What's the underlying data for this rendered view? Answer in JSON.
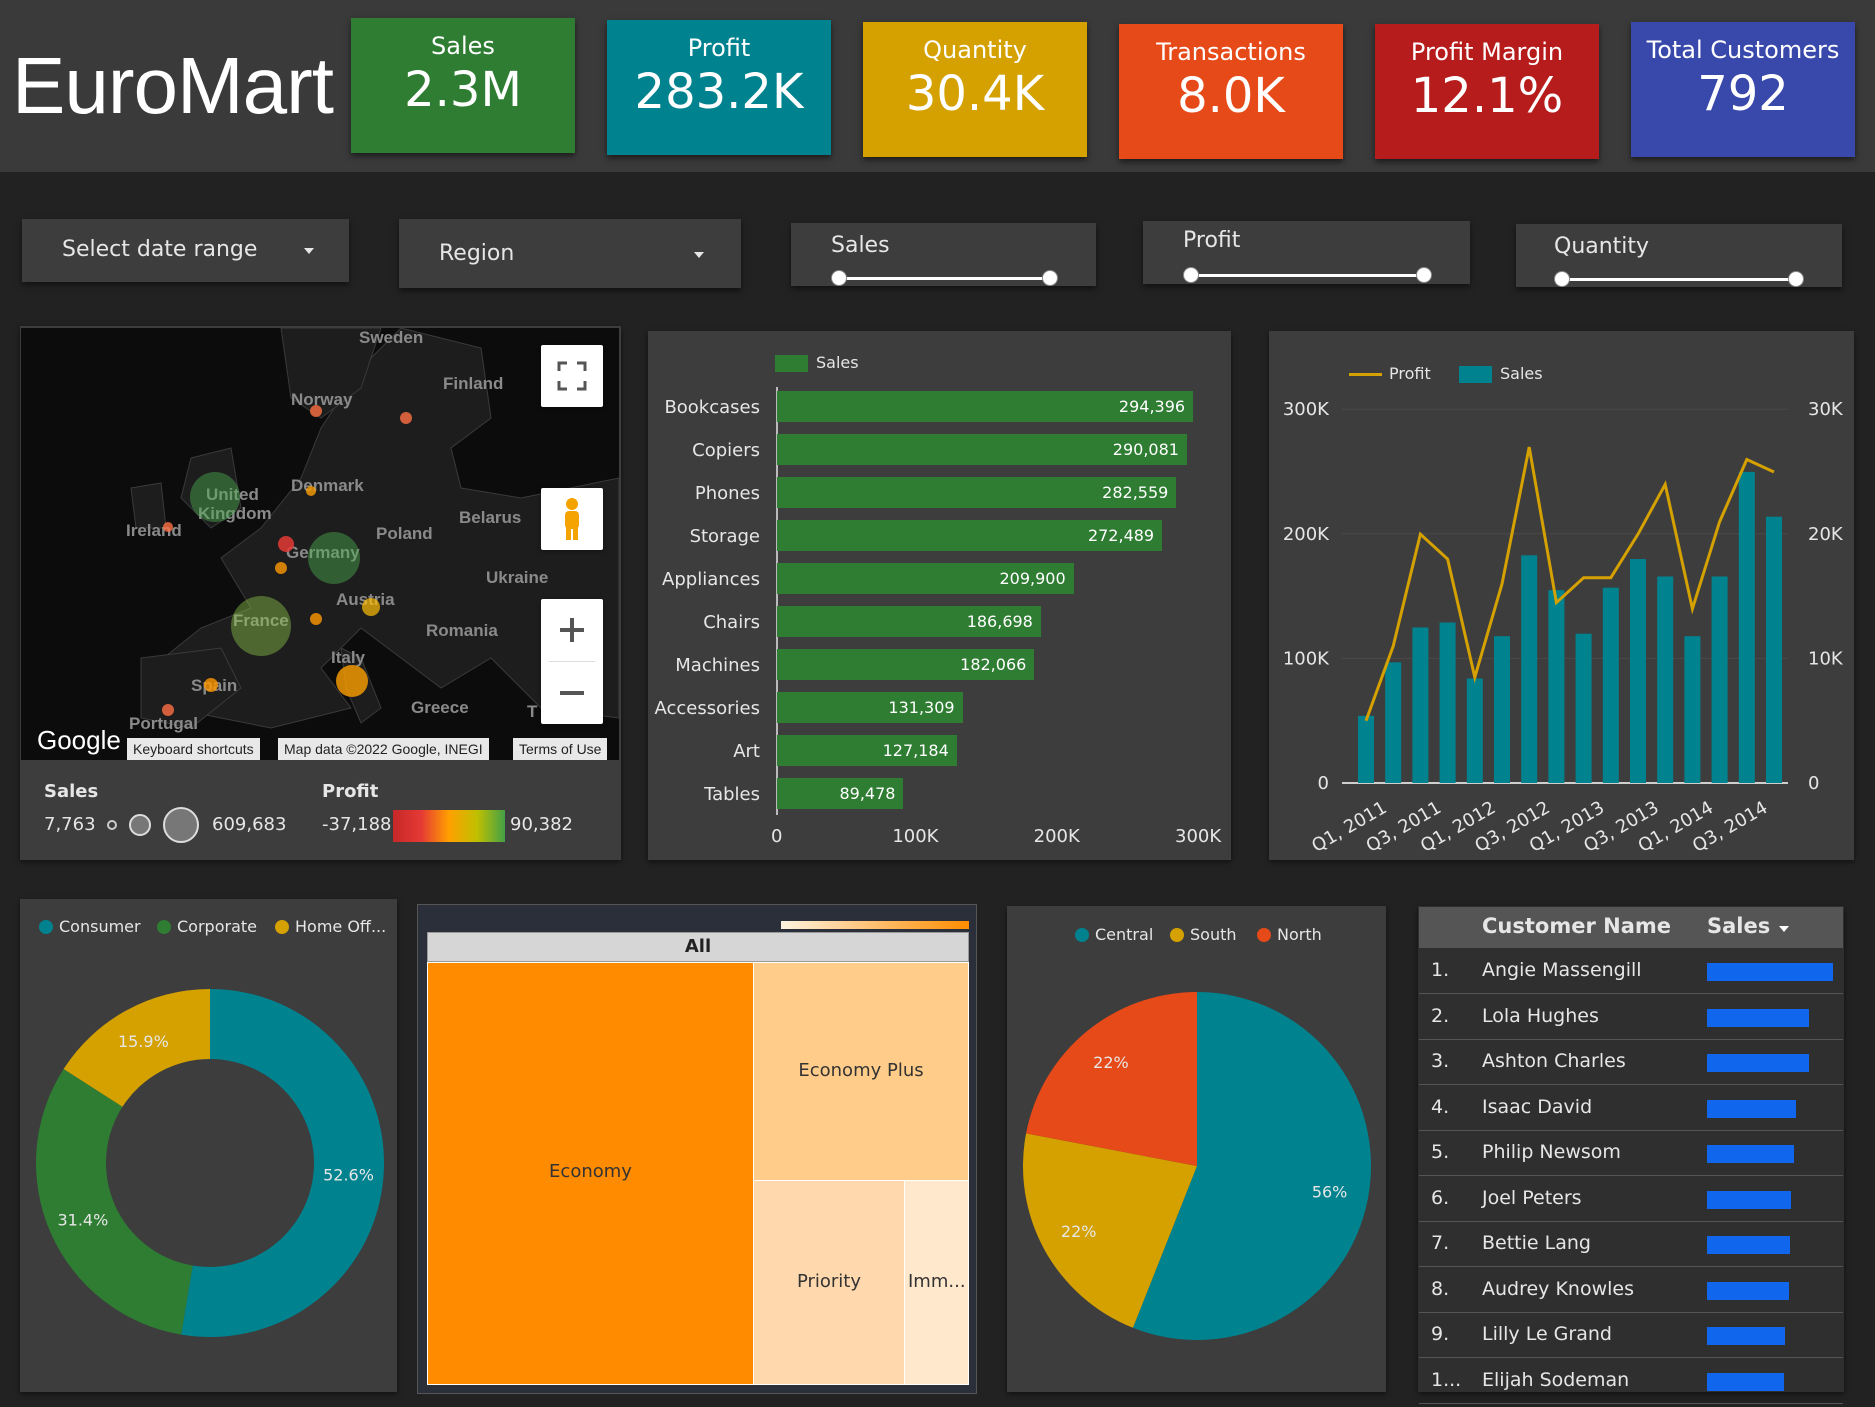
{
  "header": {
    "brand": "EuroMart",
    "kpis": [
      {
        "label": "Sales",
        "value": "2.3M",
        "color": "#2e7d32"
      },
      {
        "label": "Profit",
        "value": "283.2K",
        "color": "#00838f"
      },
      {
        "label": "Quantity",
        "value": "30.4K",
        "color": "#d4a100"
      },
      {
        "label": "Transactions",
        "value": "8.0K",
        "color": "#e64a19"
      },
      {
        "label": "Profit Margin",
        "value": "12.1%",
        "color": "#b71c1c"
      },
      {
        "label": "Total Customers",
        "value": "792",
        "color": "#3949ab"
      }
    ]
  },
  "filters": {
    "date_range": "Select date range",
    "region": "Region",
    "sliders": [
      "Sales",
      "Profit",
      "Quantity"
    ]
  },
  "map": {
    "labels": [
      "Sweden",
      "Finland",
      "Norway",
      "United",
      "Kingdom",
      "Denmark",
      "Belarus",
      "Ireland",
      "Poland",
      "Germany",
      "Ukraine",
      "Austria",
      "France",
      "Romania",
      "Italy",
      "Spain",
      "Portugal",
      "Greece",
      "T"
    ],
    "google": "Google",
    "footer": [
      "Keyboard shortcuts",
      "Map data ©2022 Google, INEGI",
      "Terms of Use"
    ],
    "legend": {
      "sales_title": "Sales",
      "sales_min": "7,763",
      "sales_max": "609,683",
      "profit_title": "Profit",
      "profit_min": "-37,188",
      "profit_max": "90,382"
    }
  },
  "chart_data": [
    {
      "type": "bar",
      "orientation": "horizontal",
      "legend": [
        "Sales"
      ],
      "categories": [
        "Bookcases",
        "Copiers",
        "Phones",
        "Storage",
        "Appliances",
        "Chairs",
        "Machines",
        "Accessories",
        "Art",
        "Tables"
      ],
      "values": [
        294396,
        290081,
        282559,
        272489,
        209900,
        186698,
        182066,
        131309,
        127184,
        89478
      ],
      "value_labels": [
        "294,396",
        "290,081",
        "282,559",
        "272,489",
        "209,900",
        "186,698",
        "182,066",
        "131,309",
        "127,184",
        "89,478"
      ],
      "xticks": [
        "0",
        "100K",
        "200K",
        "300K"
      ],
      "xlim": [
        0,
        300000
      ],
      "color": "#2e7d32"
    },
    {
      "type": "bar+line",
      "legend": [
        "Profit",
        "Sales"
      ],
      "x": [
        "Q1, 2011",
        "Q2, 2011",
        "Q3, 2011",
        "Q4, 2011",
        "Q1, 2012",
        "Q2, 2012",
        "Q3, 2012",
        "Q4, 2012",
        "Q1, 2013",
        "Q2, 2013",
        "Q3, 2013",
        "Q4, 2013",
        "Q1, 2014",
        "Q2, 2014",
        "Q3, 2014",
        "Q4, 2014"
      ],
      "xticks": [
        "Q1, 2011",
        "Q3, 2011",
        "Q1, 2012",
        "Q3, 2012",
        "Q1, 2013",
        "Q3, 2013",
        "Q1, 2014",
        "Q3, 2014"
      ],
      "sales": [
        54000,
        97000,
        125000,
        129000,
        84000,
        118000,
        183000,
        155000,
        120000,
        157000,
        180000,
        166000,
        118000,
        166000,
        250000,
        214000
      ],
      "profit": [
        5000,
        11000,
        20000,
        18000,
        8500,
        16000,
        27000,
        14500,
        16500,
        16500,
        20000,
        24000,
        14000,
        21000,
        26000,
        25000
      ],
      "yleft_ticks": [
        "0",
        "100K",
        "200K",
        "300K"
      ],
      "yleft_lim": [
        0,
        300000
      ],
      "yright_ticks": [
        "0",
        "10K",
        "20K",
        "30K"
      ],
      "yright_lim": [
        0,
        30000
      ],
      "sales_color": "#00838f",
      "profit_color": "#d4a100"
    },
    {
      "type": "pie",
      "style": "donut",
      "labels": [
        "Consumer",
        "Corporate",
        "Home Off..."
      ],
      "values": [
        52.6,
        31.4,
        15.9
      ],
      "value_labels": [
        "52.6%",
        "31.4%",
        "15.9%"
      ],
      "colors": [
        "#00838f",
        "#2e7d32",
        "#d4a100"
      ]
    },
    {
      "type": "treemap",
      "root": "All",
      "labels": [
        "Economy",
        "Economy Plus",
        "Priority",
        "Imm..."
      ],
      "colors": [
        "#ff8c00",
        "#ffcc8a",
        "#ffd9ad",
        "#ffe8cc"
      ]
    },
    {
      "type": "pie",
      "labels": [
        "Central",
        "South",
        "North"
      ],
      "values": [
        56,
        22,
        22
      ],
      "value_labels": [
        "56%",
        "22%",
        "22%"
      ],
      "colors": [
        "#00838f",
        "#d4a100",
        "#e64a19"
      ]
    }
  ],
  "table": {
    "headers": [
      "Customer Name",
      "Sales"
    ],
    "rows": [
      {
        "n": "1.",
        "name": "Angie Massengill",
        "bar": 1.0
      },
      {
        "n": "2.",
        "name": "Lola Hughes",
        "bar": 0.81
      },
      {
        "n": "3.",
        "name": "Ashton Charles",
        "bar": 0.81
      },
      {
        "n": "4.",
        "name": "Isaac David",
        "bar": 0.71
      },
      {
        "n": "5.",
        "name": "Philip Newsom",
        "bar": 0.69
      },
      {
        "n": "6.",
        "name": "Joel Peters",
        "bar": 0.67
      },
      {
        "n": "7.",
        "name": "Bettie Lang",
        "bar": 0.66
      },
      {
        "n": "8.",
        "name": "Audrey Knowles",
        "bar": 0.65
      },
      {
        "n": "9.",
        "name": "Lilly Le Grand",
        "bar": 0.62
      },
      {
        "n": "1...",
        "name": "Elijah Sodeman",
        "bar": 0.61
      }
    ]
  }
}
